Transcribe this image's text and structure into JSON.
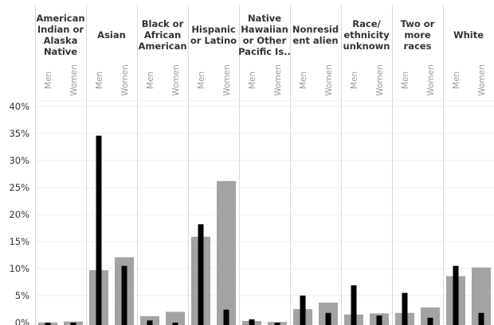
{
  "chart_data": {
    "type": "bar",
    "groups": [
      "American Indian or Alaska Native",
      "Asian",
      "Black or African American",
      "Hispanic or Latino",
      "Native Hawaiian or Other Pacific Is..",
      "Nonresident alien",
      "Race/ ethnicity unknown",
      "Two or more races",
      "White"
    ],
    "group_header_lines": [
      [
        "American",
        "Indian or",
        "Alaska",
        "Native"
      ],
      [
        "Asian"
      ],
      [
        "Black or",
        "African",
        "American"
      ],
      [
        "Hispanic",
        "or Latino"
      ],
      [
        "Native",
        "Hawaiian",
        "or Other",
        "Pacific Is.."
      ],
      [
        "Nonresid",
        "ent alien"
      ],
      [
        "Race/",
        "ethnicity",
        "unknown"
      ],
      [
        "Two or",
        "more",
        "races"
      ],
      [
        "White"
      ]
    ],
    "subcategories": [
      "Men",
      "Women"
    ],
    "series": [
      {
        "role": "wide gray bars",
        "color": "#a3a3a3",
        "values": [
          [
            0.0,
            0.2
          ],
          [
            9.7,
            12.1
          ],
          [
            1.2,
            2.0
          ],
          [
            15.9,
            26.2
          ],
          [
            0.3,
            0.1
          ],
          [
            2.5,
            3.7
          ],
          [
            1.5,
            1.7
          ],
          [
            1.8,
            2.8
          ],
          [
            8.6,
            10.2
          ]
        ]
      },
      {
        "role": "narrow black bars",
        "color": "#000000",
        "values": [
          [
            0.0,
            0.0
          ],
          [
            34.6,
            10.5
          ],
          [
            0.4,
            0.0
          ],
          [
            18.2,
            2.4
          ],
          [
            0.6,
            0.0
          ],
          [
            5.0,
            1.8
          ],
          [
            6.9,
            1.3
          ],
          [
            5.5,
            0.9
          ],
          [
            10.5,
            1.8
          ]
        ]
      }
    ],
    "y_ticks": [
      "0%",
      "5%",
      "10%",
      "15%",
      "20%",
      "25%",
      "30%",
      "35%",
      "40%"
    ],
    "ylim": [
      0,
      40
    ],
    "grid": true,
    "title": "",
    "xlabel": "",
    "ylabel": ""
  }
}
